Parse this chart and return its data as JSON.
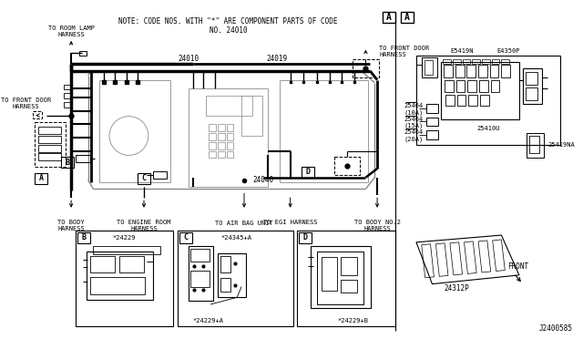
{
  "bg_color": "#ffffff",
  "line_color": "#000000",
  "fig_width": 6.4,
  "fig_height": 3.72,
  "dpi": 100,
  "note_text": "NOTE: CODE NOS. WITH \"*\" ARE COMPONENT PARTS OF CODE\nNO. 24010",
  "labels": {
    "24010": "24010",
    "24019": "24019",
    "24040": "24040",
    "room_lamp": "TO ROOM LAMP\nHARNESS",
    "front_door_top": "TO FRONT DOOR\nHARNESS",
    "front_door_left": "TO FRONT DOOR\nHARNESS",
    "body_harness": "TO BODY\nHARNESS",
    "engine_room": "TO ENGINE ROOM\nHARNESS",
    "air_bag": "TO AIR BAG UNIT",
    "egi_harness": "TO EGI HARNESS",
    "body_no2": "TO BODY NO.2\nHARNESS",
    "b_part": "*24229",
    "c_part1": "*24345+A",
    "c_part2": "*24229+A",
    "d_part": "*24229+B",
    "E5419N": "E5419N",
    "E4350P": "E4350P",
    "f1": "25464\n(10A)",
    "f2": "25464\n(15A)",
    "f3": "25464\n(20A)",
    "relay": "25410U",
    "na": "25419NA",
    "panel": "24312P",
    "front": "FRONT",
    "jcode": "J2400585",
    "boxA": "A",
    "boxB": "B",
    "boxC": "C",
    "boxD": "D"
  }
}
